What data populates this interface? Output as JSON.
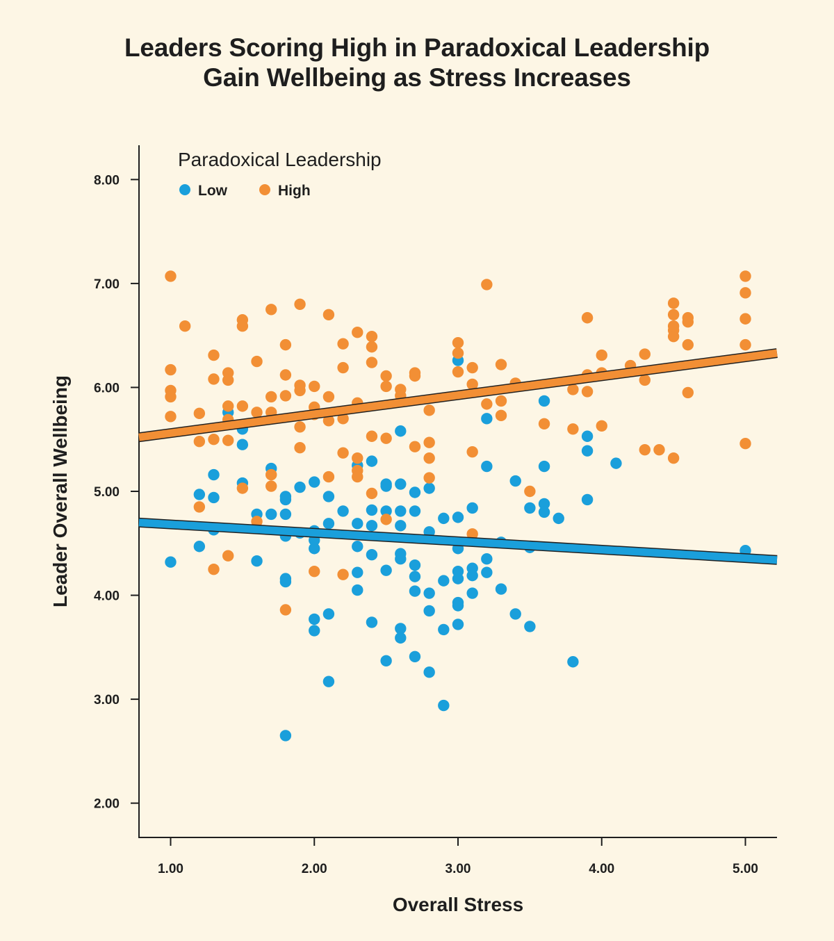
{
  "chart_data": {
    "type": "scatter",
    "title": "Leaders Scoring High in Paradoxical Leadership Gain Wellbeing as Stress Increases",
    "title_lines": [
      "Leaders Scoring High in Paradoxical Leadership",
      "Gain Wellbeing as Stress Increases"
    ],
    "xlabel": "Overall Stress",
    "ylabel": "Leader Overall Wellbeing",
    "xlim": [
      0.78,
      5.22
    ],
    "ylim": [
      1.67,
      8.33
    ],
    "x_ticks": [
      "1.00",
      "2.00",
      "3.00",
      "4.00",
      "5.00"
    ],
    "y_ticks": [
      "2.00",
      "3.00",
      "4.00",
      "5.00",
      "6.00",
      "7.00",
      "8.00"
    ],
    "grid": false,
    "legend": {
      "title": "Paradoxical Leadership",
      "placement": "top-left"
    },
    "series": [
      {
        "name": "Low",
        "color": "#1a9fdb",
        "trend": {
          "x": [
            0.78,
            5.22
          ],
          "y": [
            4.7,
            4.34
          ]
        },
        "points": [
          [
            1.0,
            4.32
          ],
          [
            1.2,
            4.97
          ],
          [
            1.2,
            4.47
          ],
          [
            1.3,
            5.16
          ],
          [
            1.3,
            4.94
          ],
          [
            1.3,
            4.63
          ],
          [
            1.4,
            5.76
          ],
          [
            1.5,
            5.6
          ],
          [
            1.5,
            5.45
          ],
          [
            1.5,
            5.08
          ],
          [
            1.6,
            4.78
          ],
          [
            1.6,
            4.33
          ],
          [
            1.7,
            5.22
          ],
          [
            1.7,
            4.78
          ],
          [
            1.8,
            4.95
          ],
          [
            1.8,
            4.92
          ],
          [
            1.8,
            4.78
          ],
          [
            1.8,
            4.57
          ],
          [
            1.8,
            4.16
          ],
          [
            1.8,
            4.13
          ],
          [
            1.8,
            2.65
          ],
          [
            1.9,
            5.04
          ],
          [
            1.9,
            4.6
          ],
          [
            2.0,
            5.09
          ],
          [
            2.0,
            4.62
          ],
          [
            2.0,
            4.53
          ],
          [
            2.0,
            4.45
          ],
          [
            2.0,
            3.77
          ],
          [
            2.0,
            3.66
          ],
          [
            2.1,
            4.95
          ],
          [
            2.1,
            4.69
          ],
          [
            2.1,
            3.82
          ],
          [
            2.1,
            3.17
          ],
          [
            2.2,
            4.81
          ],
          [
            2.3,
            5.25
          ],
          [
            2.3,
            4.69
          ],
          [
            2.3,
            4.47
          ],
          [
            2.3,
            4.22
          ],
          [
            2.3,
            4.05
          ],
          [
            2.4,
            5.29
          ],
          [
            2.4,
            4.82
          ],
          [
            2.4,
            4.67
          ],
          [
            2.4,
            4.39
          ],
          [
            2.4,
            3.74
          ],
          [
            2.5,
            5.07
          ],
          [
            2.5,
            5.05
          ],
          [
            2.5,
            4.81
          ],
          [
            2.5,
            4.24
          ],
          [
            2.5,
            3.37
          ],
          [
            2.6,
            5.58
          ],
          [
            2.6,
            5.07
          ],
          [
            2.6,
            4.81
          ],
          [
            2.6,
            4.67
          ],
          [
            2.6,
            4.4
          ],
          [
            2.6,
            4.35
          ],
          [
            2.6,
            3.68
          ],
          [
            2.6,
            3.59
          ],
          [
            2.7,
            4.99
          ],
          [
            2.7,
            4.81
          ],
          [
            2.7,
            4.29
          ],
          [
            2.7,
            4.18
          ],
          [
            2.7,
            4.04
          ],
          [
            2.7,
            3.41
          ],
          [
            2.8,
            5.03
          ],
          [
            2.8,
            4.61
          ],
          [
            2.8,
            4.02
          ],
          [
            2.8,
            3.85
          ],
          [
            2.8,
            3.26
          ],
          [
            2.9,
            4.74
          ],
          [
            2.9,
            4.14
          ],
          [
            2.9,
            3.67
          ],
          [
            2.9,
            2.94
          ],
          [
            3.0,
            6.26
          ],
          [
            3.0,
            4.75
          ],
          [
            3.0,
            4.45
          ],
          [
            3.0,
            4.23
          ],
          [
            3.0,
            4.16
          ],
          [
            3.0,
            3.93
          ],
          [
            3.0,
            3.9
          ],
          [
            3.0,
            3.72
          ],
          [
            3.1,
            4.84
          ],
          [
            3.1,
            4.26
          ],
          [
            3.1,
            4.19
          ],
          [
            3.1,
            4.02
          ],
          [
            3.2,
            5.7
          ],
          [
            3.2,
            5.24
          ],
          [
            3.2,
            4.35
          ],
          [
            3.2,
            4.22
          ],
          [
            3.3,
            4.51
          ],
          [
            3.3,
            4.06
          ],
          [
            3.4,
            5.1
          ],
          [
            3.4,
            3.82
          ],
          [
            3.5,
            4.84
          ],
          [
            3.5,
            4.46
          ],
          [
            3.5,
            3.7
          ],
          [
            3.6,
            5.87
          ],
          [
            3.6,
            5.24
          ],
          [
            3.6,
            4.88
          ],
          [
            3.6,
            4.8
          ],
          [
            3.7,
            4.74
          ],
          [
            3.8,
            3.36
          ],
          [
            3.9,
            5.53
          ],
          [
            3.9,
            5.39
          ],
          [
            3.9,
            4.92
          ],
          [
            4.1,
            5.27
          ],
          [
            5.0,
            4.43
          ]
        ]
      },
      {
        "name": "High",
        "color": "#f28f35",
        "trend": {
          "x": [
            0.78,
            5.22
          ],
          "y": [
            5.52,
            6.33
          ]
        },
        "points": [
          [
            1.0,
            7.07
          ],
          [
            1.0,
            6.17
          ],
          [
            1.0,
            5.97
          ],
          [
            1.0,
            5.91
          ],
          [
            1.0,
            5.72
          ],
          [
            1.1,
            6.59
          ],
          [
            1.2,
            5.75
          ],
          [
            1.2,
            5.48
          ],
          [
            1.2,
            4.85
          ],
          [
            1.3,
            6.31
          ],
          [
            1.3,
            6.08
          ],
          [
            1.3,
            5.5
          ],
          [
            1.3,
            4.25
          ],
          [
            1.4,
            6.14
          ],
          [
            1.4,
            6.07
          ],
          [
            1.4,
            5.82
          ],
          [
            1.4,
            5.69
          ],
          [
            1.4,
            5.49
          ],
          [
            1.4,
            4.38
          ],
          [
            1.5,
            6.65
          ],
          [
            1.5,
            6.59
          ],
          [
            1.5,
            5.82
          ],
          [
            1.5,
            5.03
          ],
          [
            1.6,
            6.25
          ],
          [
            1.6,
            5.76
          ],
          [
            1.6,
            4.71
          ],
          [
            1.7,
            6.75
          ],
          [
            1.7,
            5.91
          ],
          [
            1.7,
            5.76
          ],
          [
            1.7,
            5.16
          ],
          [
            1.7,
            5.05
          ],
          [
            1.8,
            6.41
          ],
          [
            1.8,
            6.12
          ],
          [
            1.8,
            5.92
          ],
          [
            1.8,
            3.86
          ],
          [
            1.9,
            6.8
          ],
          [
            1.9,
            6.02
          ],
          [
            1.9,
            5.97
          ],
          [
            1.9,
            5.62
          ],
          [
            1.9,
            5.42
          ],
          [
            2.0,
            6.01
          ],
          [
            2.0,
            5.81
          ],
          [
            2.0,
            5.74
          ],
          [
            2.0,
            4.23
          ],
          [
            2.1,
            6.7
          ],
          [
            2.1,
            5.91
          ],
          [
            2.1,
            5.68
          ],
          [
            2.1,
            5.14
          ],
          [
            2.2,
            6.42
          ],
          [
            2.2,
            6.19
          ],
          [
            2.2,
            5.7
          ],
          [
            2.2,
            5.37
          ],
          [
            2.2,
            4.2
          ],
          [
            2.3,
            6.53
          ],
          [
            2.3,
            5.85
          ],
          [
            2.3,
            5.32
          ],
          [
            2.3,
            5.2
          ],
          [
            2.3,
            5.14
          ],
          [
            2.4,
            6.49
          ],
          [
            2.4,
            6.39
          ],
          [
            2.4,
            6.24
          ],
          [
            2.4,
            5.53
          ],
          [
            2.4,
            4.98
          ],
          [
            2.5,
            6.11
          ],
          [
            2.5,
            6.01
          ],
          [
            2.5,
            5.51
          ],
          [
            2.5,
            4.73
          ],
          [
            2.6,
            5.98
          ],
          [
            2.6,
            5.92
          ],
          [
            2.7,
            6.14
          ],
          [
            2.7,
            6.11
          ],
          [
            2.7,
            5.43
          ],
          [
            2.8,
            5.78
          ],
          [
            2.8,
            5.47
          ],
          [
            2.8,
            5.32
          ],
          [
            2.8,
            5.13
          ],
          [
            3.0,
            6.43
          ],
          [
            3.0,
            6.33
          ],
          [
            3.0,
            6.15
          ],
          [
            3.1,
            6.19
          ],
          [
            3.1,
            6.03
          ],
          [
            3.1,
            5.38
          ],
          [
            3.1,
            4.59
          ],
          [
            3.2,
            6.99
          ],
          [
            3.2,
            5.84
          ],
          [
            3.3,
            6.22
          ],
          [
            3.3,
            5.87
          ],
          [
            3.3,
            5.73
          ],
          [
            3.4,
            6.04
          ],
          [
            3.5,
            5.0
          ],
          [
            3.6,
            5.65
          ],
          [
            3.8,
            5.98
          ],
          [
            3.8,
            5.6
          ],
          [
            3.9,
            6.67
          ],
          [
            3.9,
            6.12
          ],
          [
            3.9,
            5.96
          ],
          [
            4.0,
            6.31
          ],
          [
            4.0,
            6.14
          ],
          [
            4.0,
            5.63
          ],
          [
            4.2,
            6.21
          ],
          [
            4.3,
            6.32
          ],
          [
            4.3,
            6.07
          ],
          [
            4.3,
            5.4
          ],
          [
            4.4,
            5.4
          ],
          [
            4.5,
            6.81
          ],
          [
            4.5,
            6.7
          ],
          [
            4.5,
            6.59
          ],
          [
            4.5,
            6.55
          ],
          [
            4.5,
            6.49
          ],
          [
            4.5,
            5.32
          ],
          [
            4.6,
            6.67
          ],
          [
            4.6,
            6.63
          ],
          [
            4.6,
            6.41
          ],
          [
            4.6,
            5.95
          ],
          [
            5.0,
            7.07
          ],
          [
            5.0,
            6.91
          ],
          [
            5.0,
            6.66
          ],
          [
            5.0,
            6.41
          ],
          [
            5.0,
            5.46
          ]
        ]
      }
    ]
  }
}
